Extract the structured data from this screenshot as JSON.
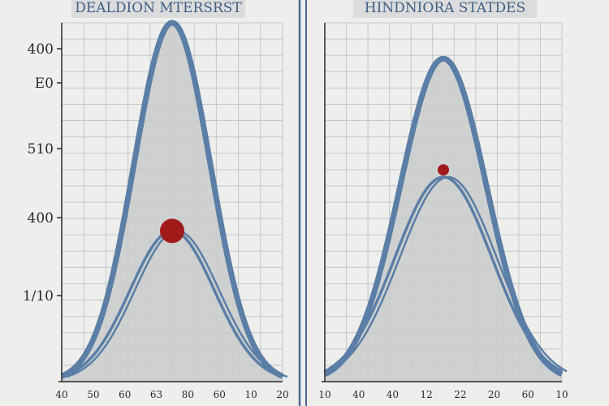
{
  "colors": {
    "background": "#eeeeec",
    "curve_stroke": "#5b7ea6",
    "curve_fill": "#c9cbcc",
    "grid": "#c4c6c8",
    "axis": "#2a2a2a",
    "divider": "#4a6a92",
    "marker": "#a01a1a",
    "title_box": "#dcdcdc",
    "title_text": "#3f5f85"
  },
  "chart_data": [
    {
      "type": "line",
      "title": "DEALDION MTERSRST",
      "y_tick_labels": [
        "400",
        "E0",
        "510",
        "400",
        "1/10"
      ],
      "x_tick_labels": [
        "40",
        "50",
        "60",
        "63",
        "80",
        "60",
        "10",
        "20"
      ],
      "series": [
        {
          "peak": 1.0,
          "center": 0.5,
          "spread": 0.38
        },
        {
          "peak": 0.42,
          "center": 0.5,
          "spread": 0.42
        }
      ],
      "marker": {
        "x": 0.5,
        "y": 0.42
      },
      "grid": true
    },
    {
      "type": "line",
      "title": "HINDNIORA STATDES",
      "y_tick_labels": [],
      "x_tick_labels": [
        "10",
        "40",
        "40",
        "12",
        "22",
        "20",
        "60",
        "10"
      ],
      "series": [
        {
          "peak": 0.9,
          "center": 0.5,
          "spread": 0.4
        },
        {
          "peak": 0.57,
          "center": 0.5,
          "spread": 0.45
        }
      ],
      "marker": {
        "x": 0.5,
        "y": 0.59
      },
      "grid": true
    }
  ]
}
